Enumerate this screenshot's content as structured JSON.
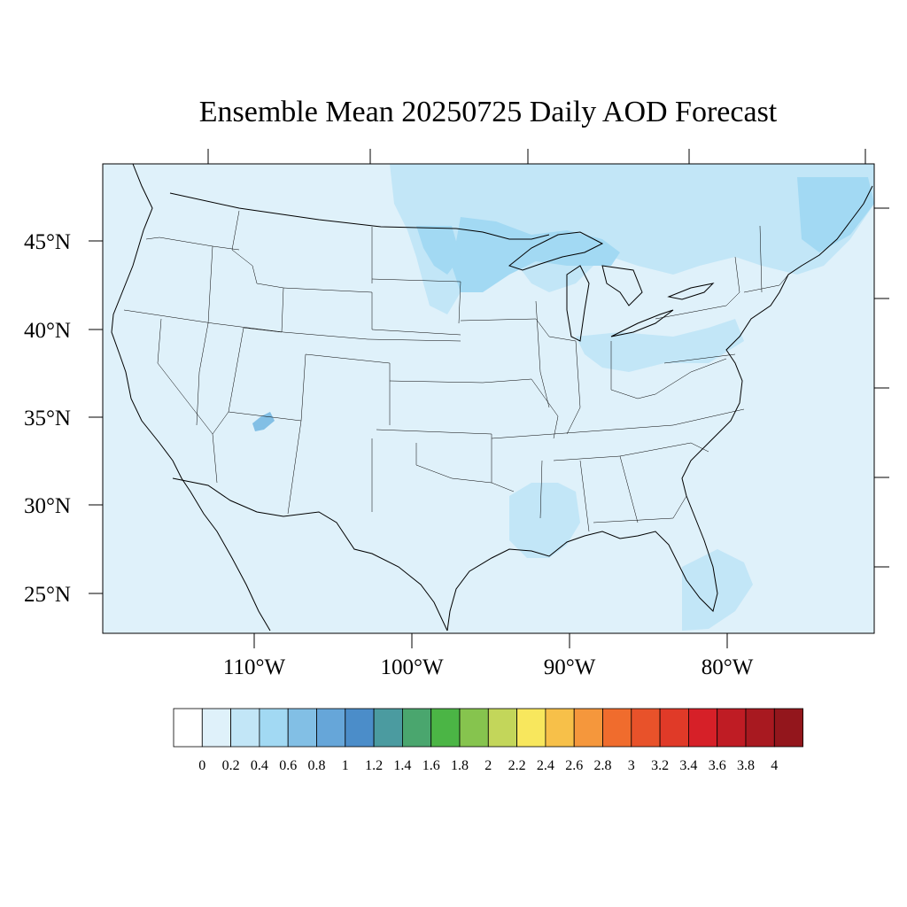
{
  "title": "Ensemble Mean 20250725 Daily AOD Forecast",
  "map": {
    "lat_labels": [
      "45°N",
      "40°N",
      "35°N",
      "30°N",
      "25°N"
    ],
    "lon_labels": [
      "110°W",
      "100°W",
      "90°W",
      "80°W"
    ],
    "background_color": "#dff1fa",
    "highlight_colors": [
      "#c2e6f7",
      "#a2d9f3"
    ]
  },
  "colorbar": {
    "colors": [
      "#ffffff",
      "#dff1fa",
      "#c2e6f7",
      "#a2d9f3",
      "#82bfe5",
      "#66a6d9",
      "#4b8dc9",
      "#4b9ba0",
      "#4aa66e",
      "#4bb545",
      "#86c44e",
      "#c3d65a",
      "#f8e75d",
      "#f7c049",
      "#f5973c",
      "#f06c2d",
      "#e8522a",
      "#e03a28",
      "#d62028",
      "#bf1c24",
      "#a81920",
      "#93161c"
    ],
    "labels": [
      "0",
      "0.2",
      "0.4",
      "0.6",
      "0.8",
      "1",
      "1.2",
      "1.4",
      "1.6",
      "1.8",
      "2",
      "2.2",
      "2.4",
      "2.6",
      "2.8",
      "3",
      "3.2",
      "3.4",
      "3.6",
      "3.8",
      "4"
    ]
  }
}
